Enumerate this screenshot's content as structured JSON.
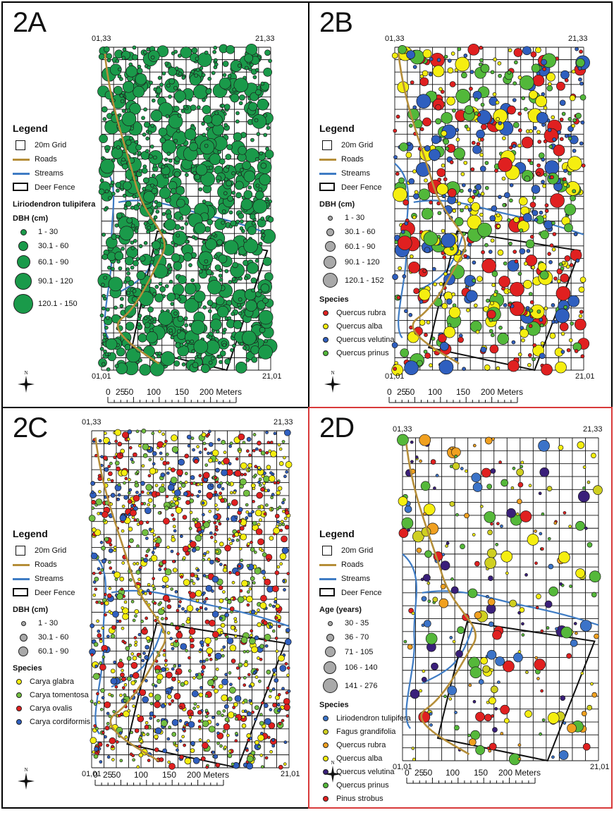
{
  "panels": [
    {
      "id": "A",
      "label": "2A",
      "selected": false,
      "corners": {
        "tl": "01,33",
        "tr": "21,33",
        "bl": "01,01",
        "br": "21,01"
      },
      "legend": {
        "title": "Legend",
        "grid": "20m Grid",
        "roads": "Roads",
        "streams": "Streams",
        "fence": "Deer Fence",
        "species_title": "Liriodendron tulipifera",
        "size_title": "DBH (cm)",
        "sizes": [
          "1 - 30",
          "30.1 - 60",
          "60.1 - 90",
          "90.1 - 120",
          "120.1 - 150"
        ],
        "species": [],
        "point_color": "#1a9a4a"
      }
    },
    {
      "id": "B",
      "label": "2B",
      "selected": false,
      "corners": {
        "tl": "01,33",
        "tr": "21,33",
        "bl": "01,01",
        "br": "21,01"
      },
      "legend": {
        "title": "Legend",
        "grid": "20m Grid",
        "roads": "Roads",
        "streams": "Streams",
        "fence": "Deer Fence",
        "size_title": "DBH (cm)",
        "sizes": [
          "1 - 30",
          "30.1 - 60",
          "60.1 - 90",
          "90.1 - 120",
          "120.1 - 152"
        ],
        "species_title": "Species",
        "species": [
          {
            "name": "Quercus rubra",
            "color": "#e02020"
          },
          {
            "name": "Quercus alba",
            "color": "#f5ee10"
          },
          {
            "name": "Quercus velutina",
            "color": "#2f5fbf"
          },
          {
            "name": "Quercus prinus",
            "color": "#52b83a"
          }
        ]
      }
    },
    {
      "id": "C",
      "label": "2C",
      "selected": false,
      "corners": {
        "tl": "01,33",
        "tr": "21,33",
        "bl": "01,01",
        "br": "21,01"
      },
      "legend": {
        "title": "Legend",
        "grid": "20m Grid",
        "roads": "Roads",
        "streams": "Streams",
        "fence": "Deer  Fence",
        "size_title": "DBH (cm)",
        "sizes": [
          "1 - 30",
          "30.1 - 60",
          "60.1 - 90"
        ],
        "species_title": "Species",
        "species": [
          {
            "name": "Carya glabra",
            "color": "#f5ee10"
          },
          {
            "name": "Carya tomentosa",
            "color": "#72c040"
          },
          {
            "name": "Carya ovalis",
            "color": "#e02020"
          },
          {
            "name": "Carya cordiformis",
            "color": "#2f5fbf"
          }
        ]
      }
    },
    {
      "id": "D",
      "label": "2D",
      "selected": true,
      "corners": {
        "tl": "01,33",
        "tr": "21,33",
        "bl": "01,01",
        "br": "21,01"
      },
      "legend": {
        "title": "Legend",
        "grid": "20m Grid",
        "roads": "Roads",
        "streams": "Streams",
        "fence": "Deer  Fence",
        "size_title": "Age (years)",
        "sizes": [
          "30 - 35",
          "36 - 70",
          "71 - 105",
          "106 - 140",
          "141 - 276"
        ],
        "species_title": "Species",
        "species": [
          {
            "name": "Liriodendron tulipifera",
            "color": "#3b73c8"
          },
          {
            "name": "Fagus grandifolia",
            "color": "#cfcf20"
          },
          {
            "name": "Quercus rubra",
            "color": "#f0a020"
          },
          {
            "name": "Quercus alba",
            "color": "#f5ee10"
          },
          {
            "name": "Quercus velutina",
            "color": "#3a1f7a"
          },
          {
            "name": "Quercus prinus",
            "color": "#55b83a"
          },
          {
            "name": "Pinus strobus",
            "color": "#e02020"
          }
        ]
      }
    }
  ],
  "scalebar": {
    "labels": [
      "0",
      "25",
      "50",
      "100",
      "150",
      "200 Meters"
    ]
  },
  "compass": {
    "letter": "N",
    "icon": "north-arrow-icon"
  },
  "colors": {
    "grid": "#111111",
    "road": "#b58e39",
    "stream": "#3f7cc4",
    "fence": "#111111",
    "selected_border": "#d83a3a"
  }
}
